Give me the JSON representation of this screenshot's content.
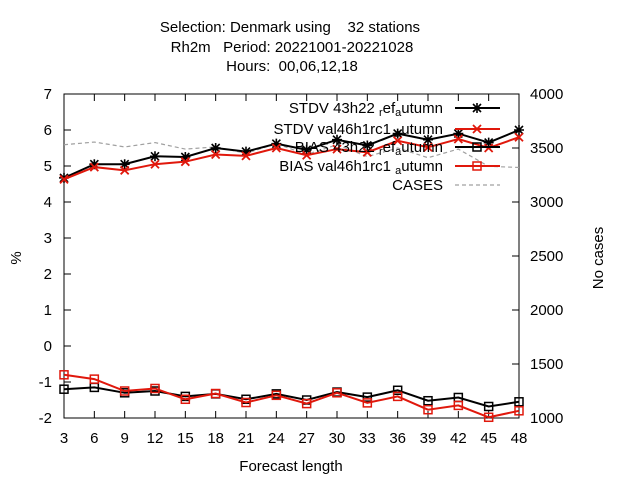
{
  "chart_data": {
    "type": "line",
    "title_lines": [
      "Selection: Denmark using    32 stations",
      "Rh2m   Period: 20221001-20221028",
      "Hours:  00,06,12,18"
    ],
    "xlabel": "Forecast length",
    "ylabel": "%",
    "y2label": "No cases",
    "x": [
      3,
      6,
      9,
      12,
      15,
      18,
      21,
      24,
      27,
      30,
      33,
      36,
      39,
      42,
      45,
      48
    ],
    "xlim": [
      3,
      48
    ],
    "ylim": [
      -2,
      7
    ],
    "y2lim": [
      1000,
      4000
    ],
    "xticks": [
      3,
      6,
      9,
      12,
      15,
      18,
      21,
      24,
      27,
      30,
      33,
      36,
      39,
      42,
      45,
      48
    ],
    "yticks": [
      -2,
      -1,
      0,
      1,
      2,
      3,
      4,
      5,
      6,
      7
    ],
    "y2ticks": [
      1000,
      1500,
      2000,
      2500,
      3000,
      3500,
      4000
    ],
    "legend_position": "top-right",
    "series": [
      {
        "name": "STDV 43h22_ref_autumn",
        "legend_parts": [
          "STDV 43h22",
          "r",
          "ef",
          "a",
          "utumn"
        ],
        "color": "#000000",
        "marker": "star",
        "axis": "y",
        "values": [
          4.67,
          5.05,
          5.05,
          5.27,
          5.25,
          5.5,
          5.4,
          5.62,
          5.45,
          5.73,
          5.57,
          5.9,
          5.73,
          5.9,
          5.65,
          6.0
        ]
      },
      {
        "name": "STDV val46h1rc1_autumn",
        "legend_parts": [
          "STDV val46h1rc1",
          "",
          "",
          "a",
          "utumn"
        ],
        "color": "#e0180c",
        "marker": "x",
        "axis": "y",
        "values": [
          4.63,
          4.97,
          4.88,
          5.05,
          5.12,
          5.32,
          5.28,
          5.5,
          5.3,
          5.47,
          5.38,
          5.7,
          5.52,
          5.75,
          5.5,
          5.8
        ]
      },
      {
        "name": "BIAS 43h22_ref_autumn",
        "legend_parts": [
          "BIAS 43h22",
          "r",
          "ef",
          "a",
          "utumn"
        ],
        "color": "#000000",
        "marker": "square",
        "axis": "y",
        "values": [
          -1.2,
          -1.15,
          -1.3,
          -1.25,
          -1.4,
          -1.33,
          -1.48,
          -1.33,
          -1.5,
          -1.28,
          -1.42,
          -1.23,
          -1.52,
          -1.43,
          -1.68,
          -1.55
        ]
      },
      {
        "name": "BIAS val46h1rc1_autumn",
        "legend_parts": [
          "BIAS val46h1rc1",
          "",
          "",
          "a",
          "utumn"
        ],
        "color": "#e0180c",
        "marker": "square",
        "axis": "y",
        "values": [
          -0.8,
          -0.92,
          -1.25,
          -1.18,
          -1.48,
          -1.32,
          -1.57,
          -1.37,
          -1.6,
          -1.3,
          -1.58,
          -1.4,
          -1.77,
          -1.65,
          -1.98,
          -1.8
        ]
      },
      {
        "name": "CASES",
        "legend_parts": [
          "CASES",
          "",
          "",
          "",
          ""
        ],
        "color": "#a0a0a0",
        "marker": "none",
        "dashed": true,
        "axis": "y2",
        "values": [
          3530,
          3555,
          3510,
          3550,
          3490,
          3510,
          3450,
          3540,
          3440,
          3530,
          3420,
          3500,
          3410,
          3490,
          3330,
          3320
        ]
      }
    ]
  }
}
